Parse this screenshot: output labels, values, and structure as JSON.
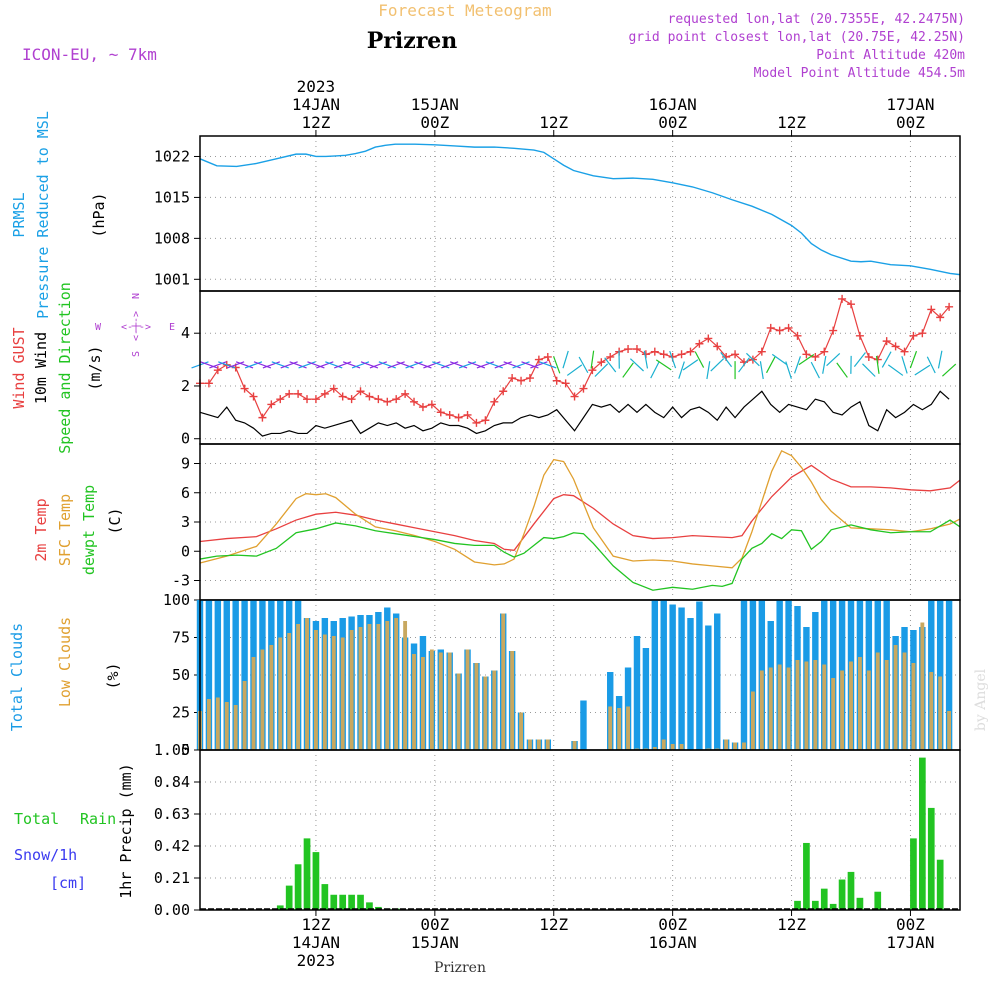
{
  "header": {
    "title": "Forecast Meteogram",
    "location": "Prizren",
    "model": "ICON-EU, ~ 7km",
    "requested": "requested lon,lat (20.7355E, 42.2475N)",
    "gridpoint": "grid point closest lon,lat (20.75E, 42.25N)",
    "point_altitude": "Point Altitude 420m",
    "model_altitude": "Model Point Altitude 454.5m",
    "credit": "by Angel",
    "footer_location": "Prizren"
  },
  "colors": {
    "pressure": "#1aa0e6",
    "gust": "#e84040",
    "wind": "#000000",
    "wind_dir": "#22c422",
    "temp": "#e84040",
    "sfc": "#e0a030",
    "dew": "#22c422",
    "total_clouds": "#1a9be6",
    "low_clouds": "#c8a860",
    "precip": "#22c422",
    "snow": "#3a3af0",
    "label_purple": "#b040d0"
  },
  "time_axis": {
    "top_ticks": [
      {
        "t": 12,
        "lines": [
          "2023",
          "14JAN",
          "12Z"
        ]
      },
      {
        "t": 24,
        "lines": [
          "15JAN",
          "00Z"
        ]
      },
      {
        "t": 36,
        "lines": [
          "12Z"
        ]
      },
      {
        "t": 48,
        "lines": [
          "16JAN",
          "00Z"
        ]
      },
      {
        "t": 60,
        "lines": [
          "12Z"
        ]
      },
      {
        "t": 72,
        "lines": [
          "17JAN",
          "00Z"
        ]
      }
    ],
    "bottom_ticks": [
      {
        "t": 12,
        "lines": [
          "12Z",
          "14JAN",
          "2023"
        ]
      },
      {
        "t": 24,
        "lines": [
          "00Z",
          "15JAN"
        ]
      },
      {
        "t": 36,
        "lines": [
          "12Z"
        ]
      },
      {
        "t": 48,
        "lines": [
          "00Z",
          "16JAN"
        ]
      },
      {
        "t": 60,
        "lines": [
          "12Z"
        ]
      },
      {
        "t": 72,
        "lines": [
          "00Z",
          "17JAN"
        ]
      }
    ],
    "t_range": [
      0.3,
      77
    ]
  },
  "labels": {
    "pressure": {
      "l1": "PRMSL",
      "l2": "Pressure Reduced to MSL",
      "unit": "(hPa)"
    },
    "wind": {
      "gust": "Wind GUST",
      "wind": "10m Wind",
      "dir": "Speed and Direction",
      "unit": "(m/s)",
      "compass_w": "W",
      "compass_e": "E",
      "compass_n": "N",
      "compass_s": "S"
    },
    "temp": {
      "t2m": "2m Temp",
      "sfc": "SFC Temp",
      "dew": "dewpt Temp",
      "unit": "(C)"
    },
    "clouds": {
      "total": "Total Clouds",
      "low": "Low Clouds",
      "unit": "(%)"
    },
    "precip": {
      "total": "Total",
      "rain": "Rain",
      "snow": "Snow/1h",
      "cm": "[cm]",
      "unit": "1hr Precip (mm)"
    }
  },
  "chart_data": [
    {
      "type": "line",
      "title": "PRMSL Pressure Reduced to MSL",
      "ylabel": "(hPa)",
      "ylim": [
        999,
        1025.5
      ],
      "yticks": [
        1001,
        1008,
        1015,
        1022
      ],
      "series": [
        {
          "name": "PRMSL",
          "x": [
            0.3,
            2,
            4,
            6,
            8,
            10,
            11,
            12,
            13,
            14,
            15,
            16,
            17,
            18,
            19,
            20,
            22,
            24,
            26,
            28,
            30,
            32,
            34,
            35,
            36,
            37,
            38,
            40,
            42,
            44,
            46,
            48,
            50,
            52,
            54,
            56,
            58,
            60,
            61,
            62,
            63,
            64,
            66,
            67,
            68,
            70,
            72,
            74,
            76,
            77
          ],
          "values": [
            1021.6,
            1020.4,
            1020.3,
            1020.8,
            1021.6,
            1022.4,
            1022.4,
            1022.0,
            1022.0,
            1022.1,
            1022.2,
            1022.5,
            1022.9,
            1023.6,
            1023.9,
            1024.1,
            1024.1,
            1024.0,
            1023.8,
            1023.6,
            1023.6,
            1023.4,
            1023.1,
            1022.7,
            1021.6,
            1020.5,
            1019.6,
            1018.7,
            1018.2,
            1018.3,
            1018.1,
            1017.5,
            1016.8,
            1015.8,
            1014.6,
            1013.5,
            1012.1,
            1010.2,
            1008.9,
            1007.1,
            1006.0,
            1005.2,
            1004.1,
            1004.0,
            1004.1,
            1003.5,
            1003.3,
            1002.7,
            1002.0,
            1001.8
          ]
        }
      ]
    },
    {
      "type": "line",
      "title": "Wind GUST / 10m Wind",
      "ylabel": "(m/s)",
      "ylim": [
        -0.2,
        5.6
      ],
      "yticks": [
        0,
        2,
        4
      ],
      "series": [
        {
          "name": "Wind GUST",
          "values": [
            2.1,
            2.1,
            2.6,
            2.8,
            2.7,
            1.9,
            1.6,
            0.8,
            1.3,
            1.5,
            1.7,
            1.7,
            1.5,
            1.5,
            1.7,
            1.9,
            1.6,
            1.5,
            1.8,
            1.6,
            1.5,
            1.4,
            1.5,
            1.7,
            1.4,
            1.2,
            1.3,
            1.0,
            0.9,
            0.8,
            0.9,
            0.6,
            0.7,
            1.4,
            1.8,
            2.3,
            2.2,
            2.3,
            3.0,
            3.1,
            2.2,
            2.1,
            1.6,
            1.9,
            2.6,
            2.9,
            3.1,
            3.3,
            3.4,
            3.4,
            3.2,
            3.3,
            3.2,
            3.1,
            3.2,
            3.3,
            3.6,
            3.8,
            3.5,
            3.1,
            3.2,
            2.9,
            3.0,
            3.3,
            4.2,
            4.1,
            4.2,
            3.9,
            3.2,
            3.1,
            3.3,
            4.1,
            5.3,
            5.1,
            3.9,
            3.1,
            3.0,
            3.7,
            3.5,
            3.3,
            3.9,
            4.0,
            4.9,
            4.6,
            5.0
          ]
        },
        {
          "name": "10m Wind",
          "values": [
            1.0,
            0.9,
            0.8,
            1.2,
            0.7,
            0.6,
            0.4,
            0.1,
            0.2,
            0.2,
            0.3,
            0.2,
            0.2,
            0.5,
            0.4,
            0.5,
            0.6,
            0.7,
            0.2,
            0.4,
            0.6,
            0.5,
            0.6,
            0.4,
            0.5,
            0.3,
            0.4,
            0.6,
            0.5,
            0.5,
            0.4,
            0.2,
            0.3,
            0.5,
            0.6,
            0.6,
            0.8,
            0.9,
            0.8,
            0.9,
            1.1,
            0.7,
            0.3,
            0.8,
            1.3,
            1.2,
            1.3,
            1.0,
            1.3,
            1.0,
            1.3,
            1.0,
            0.8,
            1.2,
            0.8,
            1.1,
            1.2,
            1.0,
            0.7,
            1.2,
            0.8,
            1.2,
            1.5,
            1.8,
            1.3,
            1.0,
            1.3,
            1.2,
            1.1,
            1.5,
            1.4,
            1.0,
            0.9,
            1.2,
            1.4,
            0.5,
            0.3,
            1.1,
            0.8,
            1.0,
            1.3,
            1.1,
            1.3,
            1.8,
            1.5
          ]
        }
      ],
      "x_start": 0.3,
      "x_step": 0.9
    },
    {
      "type": "line",
      "title": "2m Temp / SFC Temp / dewpt Temp",
      "ylabel": "(C)",
      "ylim": [
        -5,
        11
      ],
      "yticks": [
        -3,
        0,
        3,
        6,
        9
      ],
      "series": [
        {
          "name": "2m Temp",
          "x": [
            0.3,
            3,
            6,
            8,
            10,
            12,
            14,
            16,
            18,
            20,
            22,
            24,
            26,
            28,
            30,
            31,
            32,
            34,
            36,
            37,
            38,
            40,
            42,
            44,
            46,
            48,
            50,
            52,
            54,
            55,
            56,
            58,
            60,
            62,
            64,
            66,
            68,
            70,
            72,
            74,
            76,
            77
          ],
          "values": [
            1.0,
            1.3,
            1.5,
            2.3,
            3.2,
            3.8,
            4.0,
            3.7,
            3.2,
            2.8,
            2.4,
            2.0,
            1.6,
            1.1,
            0.8,
            0.2,
            0.1,
            2.8,
            5.4,
            5.8,
            5.7,
            4.4,
            2.8,
            1.6,
            1.3,
            1.4,
            1.6,
            1.5,
            1.4,
            1.6,
            3.1,
            5.6,
            7.6,
            8.8,
            7.4,
            6.6,
            6.6,
            6.5,
            6.3,
            6.2,
            6.5,
            7.3
          ]
        },
        {
          "name": "SFC Temp",
          "x": [
            0.3,
            3,
            6,
            8,
            10,
            11,
            12,
            13,
            14,
            16,
            18,
            20,
            22,
            24,
            26,
            28,
            30,
            31,
            32,
            33,
            34,
            35,
            36,
            37,
            38,
            40,
            42,
            44,
            46,
            48,
            50,
            52,
            54,
            55,
            56,
            58,
            59,
            60,
            61,
            62,
            63,
            64,
            66,
            68,
            70,
            72,
            74,
            76,
            77
          ],
          "values": [
            -1.2,
            -0.5,
            0.5,
            2.8,
            5.4,
            5.9,
            5.8,
            5.9,
            5.5,
            3.8,
            2.5,
            2.1,
            1.6,
            1.0,
            0.2,
            -1.1,
            -1.4,
            -1.3,
            -0.8,
            1.8,
            4.6,
            7.8,
            9.4,
            9.2,
            7.4,
            2.4,
            -0.5,
            -1.0,
            -0.9,
            -1.0,
            -1.3,
            -1.5,
            -1.7,
            -0.7,
            2.0,
            8.2,
            10.3,
            9.8,
            8.6,
            7.1,
            5.3,
            4.1,
            2.4,
            2.3,
            2.2,
            2.0,
            2.3,
            2.8,
            3.3
          ]
        },
        {
          "name": "dewpt Temp",
          "x": [
            0.3,
            2,
            4,
            6,
            8,
            10,
            12,
            14,
            16,
            18,
            20,
            22,
            24,
            26,
            28,
            30,
            31,
            32,
            33,
            34,
            35,
            36,
            37,
            38,
            39,
            40,
            42,
            44,
            46,
            48,
            50,
            52,
            53,
            54,
            55,
            56,
            57,
            58,
            59,
            60,
            61,
            62,
            63,
            64,
            66,
            68,
            70,
            72,
            74,
            76,
            77
          ],
          "values": [
            -0.8,
            -0.5,
            -0.4,
            -0.5,
            0.3,
            1.9,
            2.3,
            2.9,
            2.6,
            2.1,
            1.8,
            1.5,
            1.2,
            0.8,
            0.6,
            0.6,
            -0.1,
            -0.6,
            -0.2,
            0.6,
            1.4,
            1.3,
            1.5,
            1.9,
            1.8,
            0.8,
            -1.5,
            -3.2,
            -4.0,
            -3.7,
            -3.9,
            -3.5,
            -3.6,
            -3.3,
            -0.8,
            0.3,
            0.8,
            1.8,
            1.3,
            2.2,
            2.1,
            0.2,
            1.0,
            2.2,
            2.7,
            2.2,
            1.9,
            2.0,
            2.0,
            3.2,
            2.5
          ]
        }
      ]
    },
    {
      "type": "bar",
      "title": "Total Clouds / Low Clouds",
      "ylabel": "(%)",
      "ylim": [
        0,
        100
      ],
      "yticks": [
        0,
        25,
        50,
        75,
        100
      ],
      "x_start": 0.3,
      "x_step": 0.9,
      "series": [
        {
          "name": "Total Clouds",
          "values": [
            100,
            100,
            100,
            100,
            100,
            100,
            100,
            100,
            100,
            100,
            100,
            100,
            88,
            86,
            88,
            86,
            88,
            89,
            90,
            90,
            92,
            95,
            91,
            75,
            71,
            76,
            66,
            67,
            65,
            51,
            67,
            58,
            49,
            53,
            91,
            66,
            25,
            7,
            7,
            7,
            0,
            0,
            6,
            33,
            0,
            0,
            52,
            36,
            55,
            76,
            68,
            100,
            100,
            97,
            95,
            88,
            99,
            83,
            91,
            7,
            5,
            100,
            100,
            100,
            86,
            100,
            100,
            96,
            82,
            92,
            100,
            100,
            100,
            100,
            100,
            100,
            100,
            100,
            76,
            82,
            80,
            82,
            100,
            100,
            100
          ]
        },
        {
          "name": "Low Clouds",
          "values": [
            26,
            34,
            35,
            32,
            30,
            46,
            62,
            67,
            70,
            75,
            78,
            84,
            88,
            80,
            77,
            76,
            75,
            80,
            82,
            84,
            84,
            86,
            88,
            86,
            64,
            62,
            67,
            65,
            65,
            51,
            67,
            58,
            49,
            53,
            91,
            66,
            25,
            7,
            7,
            7,
            0,
            0,
            6,
            0,
            0,
            0,
            29,
            28,
            29,
            1,
            1,
            2,
            7,
            4,
            4,
            0,
            0,
            1,
            1,
            7,
            5,
            5,
            39,
            53,
            55,
            57,
            55,
            60,
            59,
            60,
            57,
            48,
            53,
            59,
            62,
            53,
            65,
            60,
            70,
            65,
            58,
            85,
            52,
            49,
            26
          ]
        }
      ]
    },
    {
      "type": "bar",
      "title": "1hr Precip (mm)",
      "ylabel": "1hr Precip (mm)",
      "ylim": [
        0,
        1.05
      ],
      "yticks": [
        0,
        0.21,
        0.42,
        0.63,
        0.84,
        1.05
      ],
      "x_start": 0.3,
      "x_step": 0.9,
      "series": [
        {
          "name": "Total Rain",
          "values": [
            0,
            0,
            0,
            0,
            0,
            0,
            0,
            0,
            0,
            0.03,
            0.16,
            0.3,
            0.47,
            0.38,
            0.17,
            0.1,
            0.1,
            0.1,
            0.1,
            0.05,
            0.02,
            0.01,
            0.01,
            0,
            0,
            0,
            0,
            0,
            0,
            0,
            0,
            0,
            0,
            0,
            0,
            0,
            0,
            0,
            0,
            0,
            0,
            0,
            0,
            0,
            0,
            0,
            0,
            0,
            0,
            0,
            0,
            0,
            0,
            0,
            0,
            0,
            0,
            0,
            0,
            0,
            0,
            0,
            0,
            0,
            0,
            0,
            0,
            0.06,
            0.44,
            0.06,
            0.14,
            0.04,
            0.2,
            0.25,
            0.08,
            0,
            0.12,
            0,
            0,
            0,
            0.47,
            1.0,
            0.67,
            0.33
          ]
        }
      ]
    }
  ]
}
